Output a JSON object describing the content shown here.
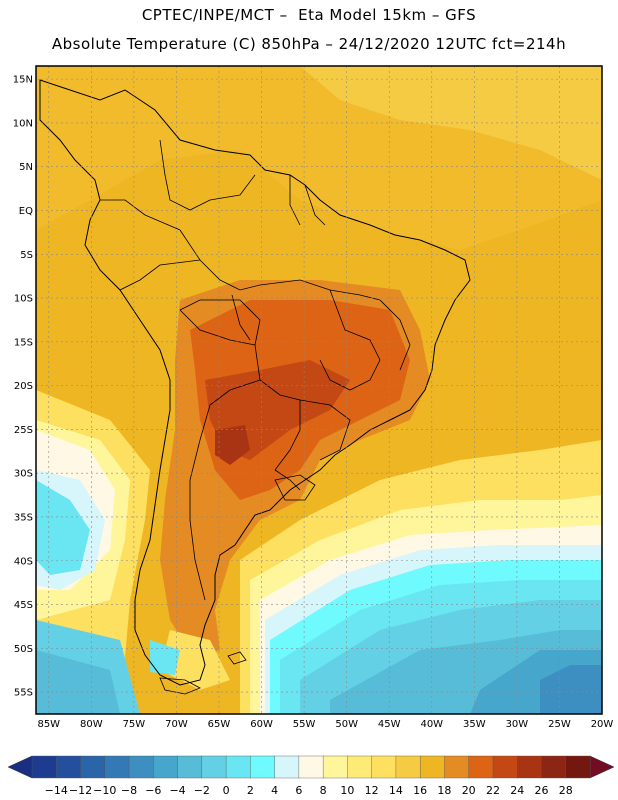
{
  "header": {
    "line1": "CPTEC/INPE/MCT –  Eta Model 15km – GFS",
    "line2": "Absolute Temperature (C) 850hPa – 24/12/2020 12UTC fct=214h"
  },
  "map": {
    "lat_labels": [
      "15N",
      "10N",
      "5N",
      "EQ",
      "5S",
      "10S",
      "15S",
      "20S",
      "25S",
      "30S",
      "35S",
      "40S",
      "45S",
      "50S",
      "55S"
    ],
    "lat_values": [
      15,
      10,
      5,
      0,
      -5,
      -10,
      -15,
      -20,
      -25,
      -30,
      -35,
      -40,
      -45,
      -50,
      -55
    ],
    "lon_labels": [
      "85W",
      "80W",
      "75W",
      "70W",
      "65W",
      "60W",
      "55W",
      "50W",
      "45W",
      "40W",
      "35W",
      "30W",
      "25W",
      "20W"
    ],
    "lon_values": [
      -85,
      -80,
      -75,
      -70,
      -65,
      -60,
      -55,
      -50,
      -45,
      -40,
      -35,
      -30,
      -25,
      -20
    ],
    "lat_range": [
      -57.5,
      16.5
    ],
    "lon_range": [
      -86.5,
      -20
    ],
    "ocean_color": "#efb624"
  },
  "colorbar": {
    "labels": [
      "-14",
      "-12",
      "-10",
      "-8",
      "-6",
      "-4",
      "-2",
      "0",
      "2",
      "4",
      "6",
      "8",
      "10",
      "12",
      "14",
      "16",
      "18",
      "20",
      "22",
      "24",
      "26",
      "28"
    ],
    "colors": [
      "#1d3c91",
      "#244f9d",
      "#2a64a9",
      "#3479b5",
      "#3d8fc1",
      "#47a6cc",
      "#56bcd8",
      "#63d0e6",
      "#6ae5f2",
      "#6ffafd",
      "#d6f6fb",
      "#fff8e4",
      "#fff59a",
      "#feeb77",
      "#fde060",
      "#f6cb44",
      "#efb624",
      "#e48b23",
      "#dc6414",
      "#c34813",
      "#a83413",
      "#8c2513",
      "#74180f"
    ],
    "left_arrow_color": "#1a2f80",
    "right_arrow_color": "#720c22"
  }
}
